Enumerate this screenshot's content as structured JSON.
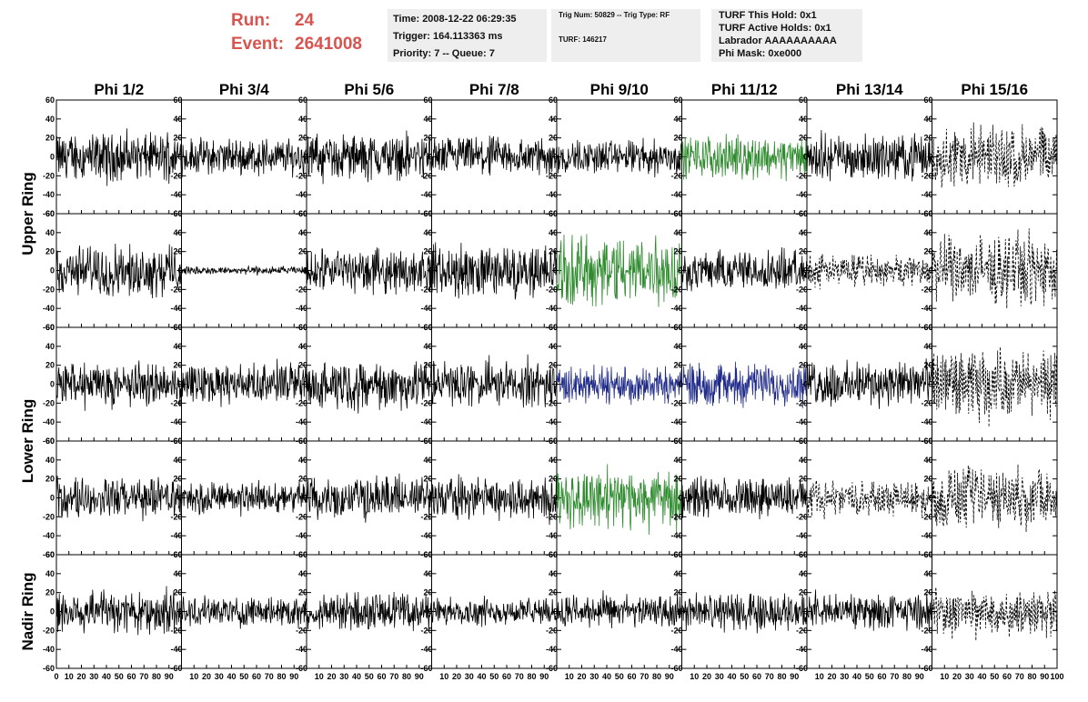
{
  "header": {
    "run_label": "Run:",
    "run_value": "24",
    "event_label": "Event:",
    "event_value": "2641008",
    "time": "Time: 2008-12-22 06:29:35",
    "trigger": "Trigger: 164.113363 ms",
    "priority": "Priority: 7 -- Queue: 7",
    "trig_num": "Trig Num: 50829 -- Trig Type: RF",
    "turf": "TURF: 146217",
    "turf_this_hold": "TURF This Hold: 0x1",
    "turf_active_holds": "TURF Active Holds: 0x1",
    "labrador": "Labrador AAAAAAAAAA",
    "phi_mask": "Phi Mask: 0xe000"
  },
  "chart_data": {
    "type": "line",
    "columns": [
      "Phi 1/2",
      "Phi 3/4",
      "Phi 5/6",
      "Phi 7/8",
      "Phi 9/10",
      "Phi 11/12",
      "Phi 13/14",
      "Phi 15/16"
    ],
    "ring_labels": [
      {
        "label": "Upper Ring",
        "rows": [
          0,
          1
        ]
      },
      {
        "label": "Lower Ring",
        "rows": [
          2,
          3
        ]
      },
      {
        "label": "Nadir Ring",
        "rows": [
          4
        ]
      }
    ],
    "ylim": [
      -60,
      60
    ],
    "xlim": [
      0,
      100
    ],
    "y_ticks": [
      "60",
      "40",
      "20",
      "0",
      "-20",
      "-40",
      "-60"
    ],
    "x_ticks": [
      "0",
      "10",
      "20",
      "30",
      "40",
      "50",
      "60",
      "70",
      "80",
      "90",
      "100"
    ],
    "colors": {
      "normal": "#000000",
      "green": "#2e8b2e",
      "blue": "#1f2a8a",
      "masked": "#000000"
    },
    "panels": [
      [
        "normal",
        "normal",
        "normal",
        "normal",
        "normal",
        "green",
        "normal",
        "masked"
      ],
      [
        "normal",
        "flat",
        "normal",
        "normal",
        "green",
        "normal",
        "masked",
        "masked"
      ],
      [
        "normal",
        "normal",
        "normal",
        "normal",
        "blue",
        "blue",
        "normal",
        "masked"
      ],
      [
        "normal",
        "normal",
        "normal",
        "normal",
        "green",
        "normal",
        "masked",
        "masked"
      ],
      [
        "normal",
        "normal",
        "normal",
        "normal",
        "normal",
        "normal",
        "normal",
        "masked"
      ]
    ],
    "amplitudes": [
      [
        18,
        14,
        17,
        15,
        13,
        16,
        17,
        24
      ],
      [
        19,
        3,
        16,
        20,
        27,
        15,
        12,
        26
      ],
      [
        16,
        15,
        18,
        17,
        14,
        16,
        17,
        25
      ],
      [
        15,
        12,
        16,
        16,
        22,
        15,
        13,
        23
      ],
      [
        17,
        11,
        14,
        10,
        12,
        14,
        13,
        18
      ]
    ]
  }
}
